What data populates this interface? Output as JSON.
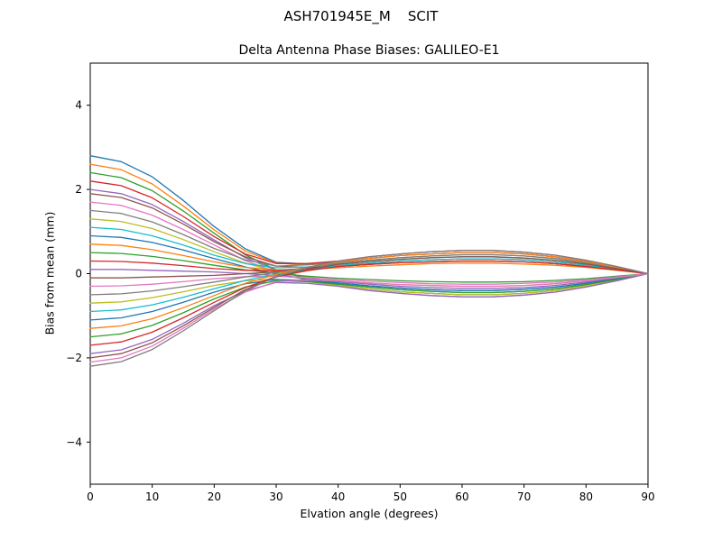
{
  "chart_data": {
    "type": "line",
    "suptitle": "ASH701945E_M    SCIT",
    "title": "Delta Antenna Phase Biases: GALILEO-E1",
    "xlabel": "Elvation angle (degrees)",
    "ylabel": "Bias from mean (mm)",
    "xlim": [
      0,
      90
    ],
    "ylim": [
      -5,
      5
    ],
    "x_ticks": [
      0,
      10,
      20,
      30,
      40,
      50,
      60,
      70,
      80,
      90
    ],
    "x_tick_labels": [
      "0",
      "10",
      "20",
      "30",
      "40",
      "50",
      "60",
      "70",
      "80",
      "90"
    ],
    "y_ticks": [
      -4,
      -2,
      0,
      2,
      4
    ],
    "y_tick_labels": [
      "−4",
      "−2",
      "0",
      "2",
      "4"
    ],
    "grid": false,
    "legend": "none",
    "description": "Many antenna phase-bias curves fan out at low elevation (≈2.8 to −2.2 mm at 0°), converge near 0 around 25–35°, spread to ±0.55 mm between 40° and 80°, and all meet 0 at 90°.",
    "x": [
      0,
      5,
      10,
      15,
      20,
      25,
      30,
      35,
      40,
      45,
      50,
      55,
      60,
      65,
      70,
      75,
      80,
      85,
      90
    ],
    "series": [
      {
        "color": "#1f77b4",
        "values": [
          2.8,
          2.66,
          2.3,
          1.74,
          1.12,
          0.59,
          0.27,
          0.23,
          0.28,
          0.36,
          0.43,
          0.47,
          0.5,
          0.5,
          0.47,
          0.4,
          0.29,
          0.15,
          0
        ]
      },
      {
        "color": "#ff7f0e",
        "values": [
          2.6,
          2.47,
          2.13,
          1.61,
          1.04,
          0.54,
          0.25,
          0.21,
          0.25,
          0.32,
          0.38,
          0.42,
          0.45,
          0.45,
          0.42,
          0.36,
          0.26,
          0.14,
          0
        ]
      },
      {
        "color": "#2ca02c",
        "values": [
          2.4,
          2.28,
          1.97,
          1.49,
          0.96,
          0.45,
          0.09,
          -0.13,
          -0.28,
          -0.36,
          -0.43,
          -0.47,
          -0.5,
          -0.5,
          -0.47,
          -0.4,
          -0.29,
          -0.15,
          0
        ]
      },
      {
        "color": "#d62728",
        "values": [
          2.2,
          2.09,
          1.8,
          1.36,
          0.88,
          0.47,
          0.24,
          0.24,
          0.3,
          0.4,
          0.47,
          0.52,
          0.55,
          0.55,
          0.51,
          0.44,
          0.32,
          0.17,
          0
        ]
      },
      {
        "color": "#9467bd",
        "values": [
          2.0,
          1.9,
          1.64,
          1.24,
          0.8,
          0.38,
          0.08,
          -0.1,
          -0.22,
          -0.29,
          -0.34,
          -0.38,
          -0.4,
          -0.4,
          -0.37,
          -0.32,
          -0.23,
          -0.12,
          0
        ]
      },
      {
        "color": "#8c564b",
        "values": [
          1.9,
          1.81,
          1.56,
          1.18,
          0.76,
          0.4,
          0.18,
          0.15,
          0.17,
          0.22,
          0.26,
          0.28,
          0.3,
          0.3,
          0.28,
          0.24,
          0.17,
          0.09,
          0
        ]
      },
      {
        "color": "#e377c2",
        "values": [
          1.7,
          1.62,
          1.39,
          1.05,
          0.68,
          0.31,
          0.04,
          -0.16,
          -0.3,
          -0.4,
          -0.47,
          -0.52,
          -0.55,
          -0.55,
          -0.51,
          -0.44,
          -0.32,
          -0.17,
          0
        ]
      },
      {
        "color": "#7f7f7f",
        "values": [
          1.5,
          1.43,
          1.23,
          0.93,
          0.6,
          0.33,
          0.18,
          0.21,
          0.28,
          0.36,
          0.43,
          0.47,
          0.5,
          0.5,
          0.47,
          0.4,
          0.29,
          0.15,
          0
        ]
      },
      {
        "color": "#bcbd22",
        "values": [
          1.3,
          1.24,
          1.07,
          0.81,
          0.52,
          0.25,
          0.05,
          -0.08,
          -0.17,
          -0.22,
          -0.26,
          -0.28,
          -0.3,
          -0.3,
          -0.28,
          -0.24,
          -0.17,
          -0.09,
          0
        ]
      },
      {
        "color": "#17becf",
        "values": [
          1.1,
          1.05,
          0.9,
          0.68,
          0.44,
          0.24,
          0.14,
          0.16,
          0.22,
          0.29,
          0.34,
          0.38,
          0.4,
          0.4,
          0.37,
          0.32,
          0.23,
          0.12,
          0
        ]
      },
      {
        "color": "#1f77b4",
        "values": [
          0.9,
          0.86,
          0.74,
          0.56,
          0.36,
          0.16,
          -0.01,
          -0.14,
          -0.25,
          -0.32,
          -0.38,
          -0.42,
          -0.45,
          -0.45,
          -0.42,
          -0.36,
          -0.26,
          -0.14,
          0
        ]
      },
      {
        "color": "#ff7f0e",
        "values": [
          0.7,
          0.67,
          0.57,
          0.43,
          0.28,
          0.15,
          0.09,
          0.1,
          0.14,
          0.18,
          0.21,
          0.24,
          0.25,
          0.25,
          0.23,
          0.2,
          0.15,
          0.08,
          0
        ]
      },
      {
        "color": "#2ca02c",
        "values": [
          0.5,
          0.48,
          0.41,
          0.31,
          0.2,
          0.09,
          0.01,
          -0.06,
          -0.11,
          -0.14,
          -0.17,
          -0.19,
          -0.2,
          -0.2,
          -0.19,
          -0.16,
          -0.12,
          -0.06,
          0
        ]
      },
      {
        "color": "#d62728",
        "values": [
          0.3,
          0.29,
          0.25,
          0.19,
          0.12,
          0.08,
          0.07,
          0.13,
          0.19,
          0.25,
          0.3,
          0.33,
          0.35,
          0.35,
          0.33,
          0.28,
          0.2,
          0.11,
          0
        ]
      },
      {
        "color": "#9467bd",
        "values": [
          0.1,
          0.1,
          0.08,
          0.06,
          0.04,
          0.0,
          -0.04,
          -0.12,
          -0.19,
          -0.25,
          -0.3,
          -0.33,
          -0.35,
          -0.35,
          -0.33,
          -0.28,
          -0.2,
          -0.11,
          0
        ]
      },
      {
        "color": "#8c564b",
        "values": [
          -0.1,
          -0.1,
          -0.08,
          -0.06,
          -0.04,
          0.0,
          0.04,
          0.1,
          0.17,
          0.22,
          0.26,
          0.28,
          0.3,
          0.3,
          0.28,
          0.24,
          0.17,
          0.09,
          0
        ]
      },
      {
        "color": "#e377c2",
        "values": [
          -0.3,
          -0.29,
          -0.25,
          -0.19,
          -0.12,
          -0.07,
          -0.06,
          -0.1,
          -0.14,
          -0.18,
          -0.21,
          -0.24,
          -0.25,
          -0.25,
          -0.23,
          -0.2,
          -0.15,
          -0.08,
          0
        ]
      },
      {
        "color": "#7f7f7f",
        "values": [
          -0.5,
          -0.48,
          -0.41,
          -0.31,
          -0.2,
          -0.08,
          0.03,
          0.15,
          0.25,
          0.32,
          0.38,
          0.42,
          0.45,
          0.45,
          0.42,
          0.36,
          0.26,
          0.14,
          0
        ]
      },
      {
        "color": "#bcbd22",
        "values": [
          -0.7,
          -0.67,
          -0.57,
          -0.43,
          -0.28,
          -0.17,
          -0.13,
          -0.19,
          -0.28,
          -0.36,
          -0.43,
          -0.47,
          -0.5,
          -0.5,
          -0.47,
          -0.4,
          -0.29,
          -0.15,
          0
        ]
      },
      {
        "color": "#17becf",
        "values": [
          -0.9,
          -0.86,
          -0.74,
          -0.56,
          -0.36,
          -0.16,
          -0.01,
          0.1,
          0.19,
          0.25,
          0.3,
          0.33,
          0.35,
          0.35,
          0.33,
          0.28,
          0.2,
          0.11,
          0
        ]
      },
      {
        "color": "#1f77b4",
        "values": [
          -1.1,
          -1.05,
          -0.9,
          -0.68,
          -0.44,
          -0.24,
          -0.14,
          -0.16,
          -0.22,
          -0.29,
          -0.34,
          -0.38,
          -0.4,
          -0.4,
          -0.37,
          -0.32,
          -0.23,
          -0.12,
          0
        ]
      },
      {
        "color": "#ff7f0e",
        "values": [
          -1.3,
          -1.24,
          -1.07,
          -0.81,
          -0.52,
          -0.23,
          -0.02,
          0.15,
          0.28,
          0.36,
          0.43,
          0.47,
          0.5,
          0.5,
          0.47,
          0.4,
          0.29,
          0.15,
          0
        ]
      },
      {
        "color": "#2ca02c",
        "values": [
          -1.5,
          -1.43,
          -1.23,
          -0.93,
          -0.6,
          -0.32,
          -0.17,
          -0.19,
          -0.25,
          -0.32,
          -0.38,
          -0.42,
          -0.45,
          -0.45,
          -0.42,
          -0.36,
          -0.26,
          -0.14,
          0
        ]
      },
      {
        "color": "#d62728",
        "values": [
          -1.7,
          -1.62,
          -1.39,
          -1.05,
          -0.68,
          -0.33,
          -0.07,
          0.07,
          0.17,
          0.22,
          0.26,
          0.28,
          0.3,
          0.3,
          0.28,
          0.24,
          0.17,
          0.09,
          0
        ]
      },
      {
        "color": "#9467bd",
        "values": [
          -1.9,
          -1.81,
          -1.56,
          -1.18,
          -0.76,
          -0.41,
          -0.21,
          -0.23,
          -0.3,
          -0.4,
          -0.47,
          -0.52,
          -0.55,
          -0.55,
          -0.51,
          -0.44,
          -0.32,
          -0.17,
          0
        ]
      },
      {
        "color": "#8c564b",
        "values": [
          -2.0,
          -1.9,
          -1.64,
          -1.24,
          -0.8,
          -0.38,
          -0.08,
          0.1,
          0.22,
          0.29,
          0.34,
          0.38,
          0.4,
          0.4,
          0.37,
          0.32,
          0.23,
          0.12,
          0
        ]
      },
      {
        "color": "#e377c2",
        "values": [
          -2.1,
          -2.0,
          -1.72,
          -1.3,
          -0.84,
          -0.44,
          -0.19,
          -0.15,
          -0.17,
          -0.22,
          -0.26,
          -0.28,
          -0.3,
          -0.3,
          -0.28,
          -0.24,
          -0.17,
          -0.09,
          0
        ]
      },
      {
        "color": "#7f7f7f",
        "values": [
          -2.2,
          -2.09,
          -1.8,
          -1.36,
          -0.88,
          -0.41,
          -0.07,
          0.15,
          0.3,
          0.4,
          0.47,
          0.52,
          0.55,
          0.55,
          0.51,
          0.44,
          0.32,
          0.17,
          0
        ]
      }
    ]
  }
}
